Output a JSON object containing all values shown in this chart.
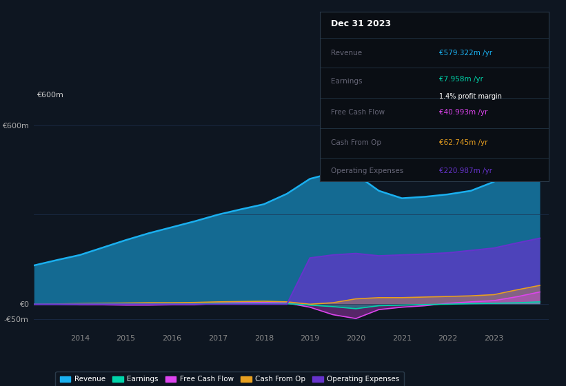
{
  "bg_color": "#0e1621",
  "plot_bg_color": "#0e1621",
  "grid_color": "#1e3050",
  "years": [
    2013.0,
    2013.5,
    2014.0,
    2014.5,
    2015.0,
    2015.5,
    2016.0,
    2016.5,
    2017.0,
    2017.5,
    2018.0,
    2018.5,
    2019.0,
    2019.5,
    2020.0,
    2020.5,
    2021.0,
    2021.5,
    2022.0,
    2022.5,
    2023.0,
    2023.5,
    2024.0
  ],
  "revenue": [
    130,
    148,
    165,
    190,
    215,
    238,
    258,
    278,
    300,
    318,
    335,
    370,
    420,
    440,
    435,
    380,
    355,
    360,
    368,
    380,
    410,
    490,
    579
  ],
  "earnings": [
    0,
    0,
    0,
    1,
    1,
    1,
    1,
    1,
    2,
    2,
    2,
    2,
    -3,
    -8,
    -15,
    -5,
    -3,
    -1,
    0,
    2,
    3,
    5,
    8
  ],
  "free_cash_flow": [
    -1,
    -1,
    -2,
    -2,
    -3,
    -3,
    -2,
    -2,
    3,
    5,
    6,
    4,
    -10,
    -35,
    -48,
    -18,
    -10,
    -5,
    3,
    8,
    12,
    25,
    41
  ],
  "cash_from_op": [
    0,
    1,
    2,
    3,
    4,
    5,
    5,
    6,
    8,
    9,
    10,
    8,
    0,
    5,
    18,
    22,
    22,
    24,
    26,
    28,
    32,
    48,
    63
  ],
  "operating_expenses": [
    0,
    0,
    0,
    0,
    0,
    0,
    0,
    0,
    0,
    0,
    0,
    0,
    155,
    165,
    170,
    162,
    165,
    168,
    172,
    180,
    188,
    205,
    221
  ],
  "revenue_color": "#1ab0f0",
  "earnings_color": "#00d4aa",
  "free_cash_flow_color": "#dd44ee",
  "cash_from_op_color": "#e8a020",
  "operating_expenses_color": "#6633cc",
  "ylim_top": 670,
  "ylim_bottom": -80,
  "xlim_left": 2013.0,
  "xlim_right": 2024.2,
  "xtick_years": [
    2014,
    2015,
    2016,
    2017,
    2018,
    2019,
    2020,
    2021,
    2022,
    2023
  ],
  "info_box": {
    "date": "Dec 31 2023",
    "revenue_label": "Revenue",
    "revenue_val": "€579.322m /yr",
    "earnings_label": "Earnings",
    "earnings_val": "€7.958m /yr",
    "profit_margin": "1.4% profit margin",
    "fcf_label": "Free Cash Flow",
    "fcf_val": "€40.993m /yr",
    "cfo_label": "Cash From Op",
    "cfo_val": "€62.745m /yr",
    "opex_label": "Operating Expenses",
    "opex_val": "€220.987m /yr"
  },
  "legend_labels": [
    "Revenue",
    "Earnings",
    "Free Cash Flow",
    "Cash From Op",
    "Operating Expenses"
  ],
  "legend_colors": [
    "#1ab0f0",
    "#00d4aa",
    "#dd44ee",
    "#e8a020",
    "#6633cc"
  ],
  "revenue_fill_alpha": 0.55,
  "opex_fill_alpha": 0.7,
  "other_fill_alpha": 0.35
}
